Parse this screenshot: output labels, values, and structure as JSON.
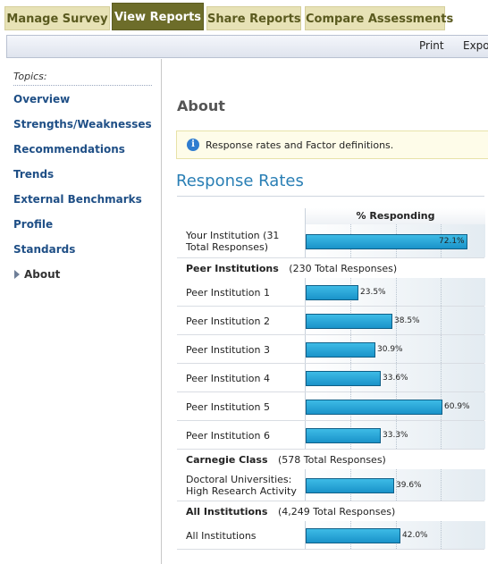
{
  "tabs": [
    {
      "label": "Manage Survey",
      "active": false
    },
    {
      "label": "View Reports",
      "active": true
    },
    {
      "label": "Share Reports",
      "active": false
    },
    {
      "label": "Compare Assessments",
      "active": false
    }
  ],
  "toolbar": {
    "print_label": "Print",
    "export_label": "Export"
  },
  "sidebar": {
    "topics_label": "Topics:",
    "items": [
      {
        "label": "Overview"
      },
      {
        "label": "Strengths/Weaknesses"
      },
      {
        "label": "Recommendations"
      },
      {
        "label": "Trends"
      },
      {
        "label": "External Benchmarks"
      },
      {
        "label": "Profile"
      },
      {
        "label": "Standards"
      },
      {
        "label": "About",
        "current": true
      }
    ]
  },
  "main": {
    "title": "About",
    "info_text": "Response rates and Factor definitions.",
    "section_title": "Response Rates",
    "column_header": "% Responding"
  },
  "colors": {
    "bar": "#1a93c9",
    "link": "#1f4f86",
    "active_tab": "#6d6d2a",
    "section_title": "#2a7fb5"
  },
  "chart_data": {
    "type": "bar",
    "orientation": "horizontal",
    "xlabel": "% Responding",
    "xlim": [
      0,
      80
    ],
    "groups": [
      {
        "name": "",
        "count": "",
        "rows": [
          {
            "label": "Your Institution (31 Total Responses)",
            "value": 72.1,
            "value_label": "72.1%"
          }
        ]
      },
      {
        "name": "Peer Institutions",
        "count": "(230 Total Responses)",
        "rows": [
          {
            "label": "Peer Institution 1",
            "value": 23.5,
            "value_label": "23.5%"
          },
          {
            "label": "Peer Institution 2",
            "value": 38.5,
            "value_label": "38.5%"
          },
          {
            "label": "Peer Institution 3",
            "value": 30.9,
            "value_label": "30.9%"
          },
          {
            "label": "Peer Institution 4",
            "value": 33.6,
            "value_label": "33.6%"
          },
          {
            "label": "Peer Institution 5",
            "value": 60.9,
            "value_label": "60.9%"
          },
          {
            "label": "Peer Institution 6",
            "value": 33.3,
            "value_label": "33.3%"
          }
        ]
      },
      {
        "name": "Carnegie Class",
        "count": "(578 Total Responses)",
        "rows": [
          {
            "label": "Doctoral Universities: High Research Activity",
            "value": 39.6,
            "value_label": "39.6%"
          }
        ]
      },
      {
        "name": "All Institutions",
        "count": "(4,249 Total Responses)",
        "rows": [
          {
            "label": "All Institutions",
            "value": 42.0,
            "value_label": "42.0%"
          }
        ]
      }
    ]
  }
}
